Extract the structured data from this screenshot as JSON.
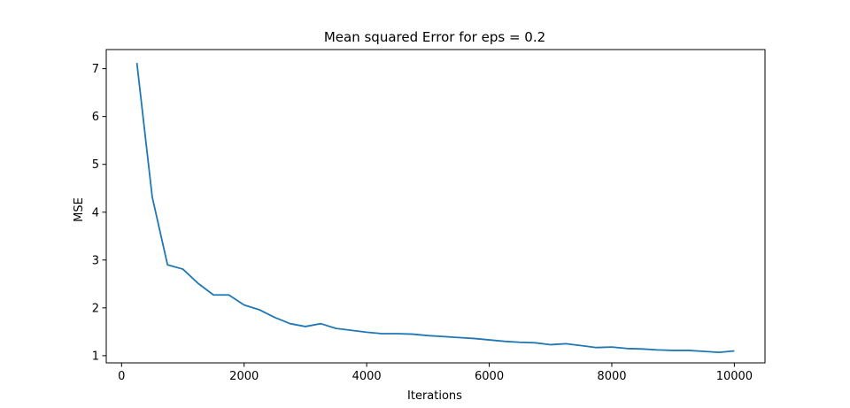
{
  "chart_data": {
    "type": "line",
    "title": "Mean squared Error for eps = 0.2",
    "xlabel": "Iterations",
    "ylabel": "MSE",
    "xlim": [
      -250,
      10500
    ],
    "ylim": [
      0.85,
      7.4
    ],
    "xticks": [
      0,
      2000,
      4000,
      6000,
      8000,
      10000
    ],
    "yticks": [
      1,
      2,
      3,
      4,
      5,
      6,
      7
    ],
    "grid": false,
    "series": [
      {
        "color": "#1f77b4",
        "x": [
          250,
          500,
          750,
          1000,
          1250,
          1500,
          1750,
          2000,
          2250,
          2500,
          2750,
          3000,
          3250,
          3500,
          3750,
          4000,
          4250,
          4500,
          4750,
          5000,
          5250,
          5500,
          5750,
          6000,
          6250,
          6500,
          6750,
          7000,
          7250,
          7500,
          7750,
          8000,
          8250,
          8500,
          8750,
          9000,
          9250,
          9500,
          9750,
          10000
        ],
        "y": [
          7.12,
          4.32,
          2.9,
          2.81,
          2.51,
          2.27,
          2.27,
          2.06,
          1.96,
          1.8,
          1.67,
          1.61,
          1.67,
          1.57,
          1.53,
          1.49,
          1.46,
          1.46,
          1.45,
          1.42,
          1.4,
          1.38,
          1.36,
          1.33,
          1.3,
          1.28,
          1.27,
          1.23,
          1.25,
          1.21,
          1.17,
          1.18,
          1.15,
          1.14,
          1.12,
          1.11,
          1.11,
          1.09,
          1.07,
          1.1
        ]
      }
    ]
  }
}
